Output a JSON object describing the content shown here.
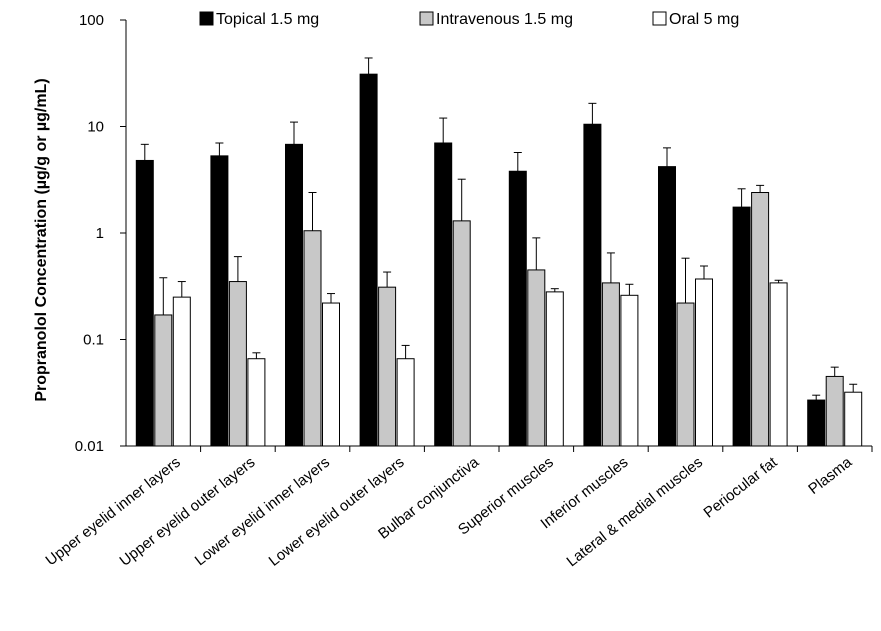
{
  "chart_data": {
    "type": "bar",
    "y_scale": "log",
    "ylabel": "Propranolol Concentration (µg/g or µg/mL)",
    "ylim": [
      0.01,
      100
    ],
    "y_ticks": [
      {
        "value": 0.01,
        "label": "0.01"
      },
      {
        "value": 0.1,
        "label": "0.1"
      },
      {
        "value": 1,
        "label": "1"
      },
      {
        "value": 10,
        "label": "10"
      },
      {
        "value": 100,
        "label": "100"
      }
    ],
    "categories": [
      "Upper eyelid inner layers",
      "Upper eyelid outer layers",
      "Lower eyelid inner layers",
      "Lower eyelid outer layers",
      "Bulbar conjunctiva",
      "Superior muscles",
      "Inferior muscles",
      "Lateral & medial muscles",
      "Periocular fat",
      "Plasma"
    ],
    "series": [
      {
        "name": "Topical 1.5 mg",
        "color": "#000000",
        "values": [
          4.8,
          5.3,
          6.8,
          31,
          7.0,
          3.8,
          10.5,
          4.2,
          1.75,
          0.027
        ],
        "error": [
          6.8,
          7.0,
          11.0,
          44,
          12.0,
          5.7,
          16.5,
          6.3,
          2.6,
          0.03
        ]
      },
      {
        "name": "Intravenous 1.5 mg",
        "color": "#c8c8c8",
        "values": [
          0.17,
          0.35,
          1.05,
          0.31,
          1.3,
          0.45,
          0.34,
          0.22,
          2.4,
          0.045
        ],
        "error": [
          0.38,
          0.6,
          2.4,
          0.43,
          3.2,
          0.9,
          0.65,
          0.58,
          2.8,
          0.055
        ]
      },
      {
        "name": "Oral 5 mg",
        "color": "#ffffff",
        "values": [
          0.25,
          0.066,
          0.22,
          0.066,
          null,
          0.28,
          0.26,
          0.37,
          0.34,
          0.032
        ],
        "error": [
          0.35,
          0.075,
          0.27,
          0.088,
          null,
          0.3,
          0.33,
          0.49,
          0.36,
          0.038
        ]
      }
    ]
  }
}
